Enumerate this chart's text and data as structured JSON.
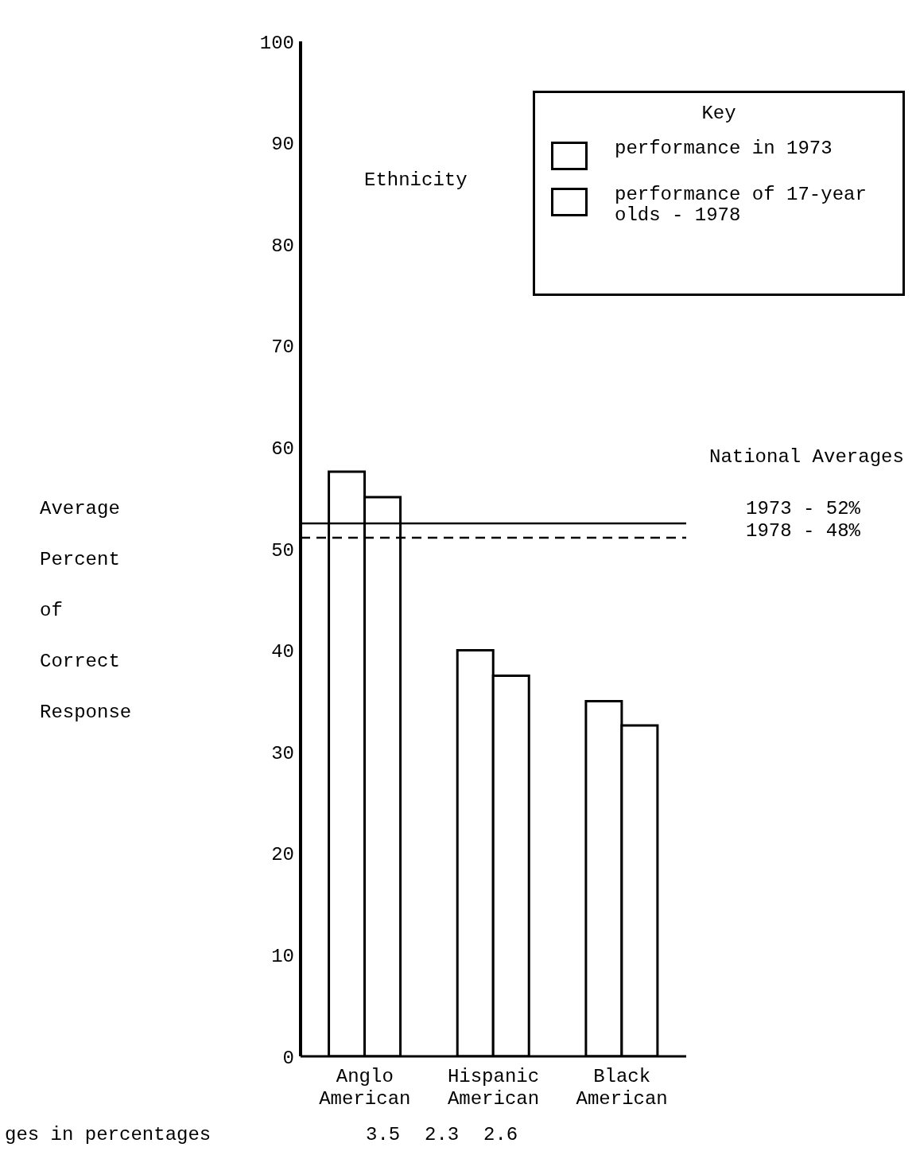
{
  "chart_data": {
    "type": "bar",
    "title": "Ethnicity",
    "ylabel": "Average Percent of Correct Response",
    "legend_title": "Key",
    "categories": [
      "Anglo American",
      "Hispanic American",
      "Black American"
    ],
    "series": [
      {
        "name": "performance in 1973",
        "color": "#ffffff",
        "values": [
          57.6,
          40.0,
          35.0
        ]
      },
      {
        "name": "performance of 17-year olds - 1978",
        "color": "#ffffff",
        "values": [
          55.1,
          37.5,
          32.6
        ]
      }
    ],
    "ylim": [
      0,
      100
    ],
    "yticks": [
      0,
      10,
      20,
      30,
      40,
      50,
      60,
      70,
      80,
      90,
      100
    ],
    "grid": false,
    "legend": "top right",
    "ref_lines": [
      {
        "axis": "y",
        "value": 52.5,
        "line_style": "solid",
        "color": "#000000"
      },
      {
        "axis": "y",
        "value": 51.1,
        "line_style": "dashed",
        "color": "#000000"
      }
    ],
    "annotations": [
      "National Averages",
      "1973 - 52%",
      "1978 - 48%",
      "ges in percentages",
      "3.5",
      "2.3",
      "2.6"
    ]
  }
}
